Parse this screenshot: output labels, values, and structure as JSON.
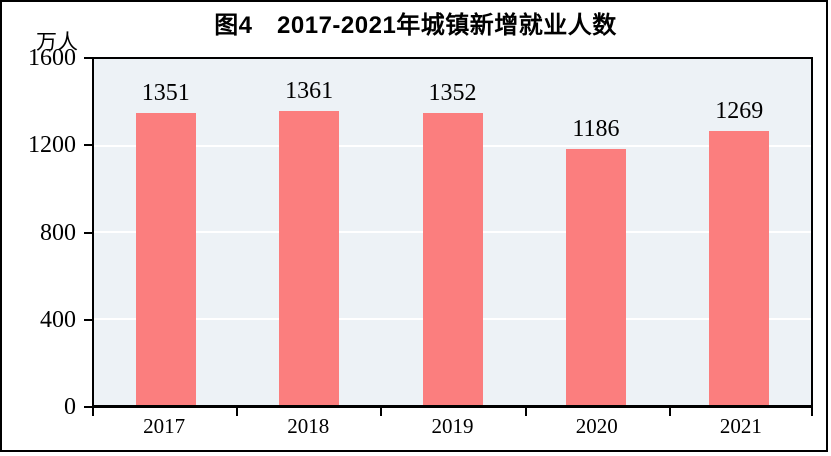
{
  "figure": {
    "title": "图4　2017-2021年城镇新增就业人数",
    "y_unit_label": "万人"
  },
  "chart_data": {
    "type": "bar",
    "title": "图4　2017-2021年城镇新增就业人数",
    "categories": [
      "2017",
      "2018",
      "2019",
      "2020",
      "2021"
    ],
    "values": [
      1351,
      1361,
      1352,
      1186,
      1269
    ],
    "xlabel": "",
    "ylabel": "万人",
    "ylim": [
      0,
      1600
    ],
    "yticks": [
      0,
      400,
      800,
      1200,
      1600
    ],
    "data_labels": true,
    "legend": "none",
    "grid": "horizontal-white",
    "colors": {
      "bar": "#FB7E7E",
      "plot_background": "#EDF2F6",
      "gridline": "#FFFFFF",
      "axis": "#000000",
      "text": "#000000",
      "page_background": "#FFFFFF"
    }
  }
}
